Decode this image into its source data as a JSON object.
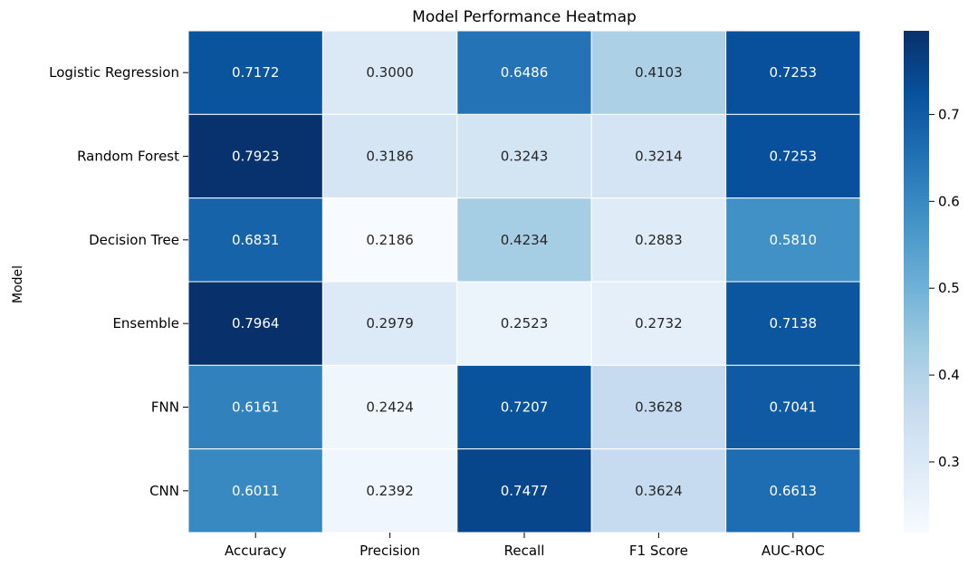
{
  "chart_data": {
    "type": "heatmap",
    "title": "Model Performance Heatmap",
    "xlabel": "",
    "ylabel": "Model",
    "columns": [
      "Accuracy",
      "Precision",
      "Recall",
      "F1 Score",
      "AUC-ROC"
    ],
    "rows": [
      "Logistic Regression",
      "Random Forest",
      "Decision Tree",
      "Ensemble",
      "FNN",
      "CNN"
    ],
    "values": [
      [
        0.7172,
        0.3,
        0.6486,
        0.4103,
        0.7253
      ],
      [
        0.7923,
        0.3186,
        0.3243,
        0.3214,
        0.7253
      ],
      [
        0.6831,
        0.2186,
        0.4234,
        0.2883,
        0.581
      ],
      [
        0.7964,
        0.2979,
        0.2523,
        0.2732,
        0.7138
      ],
      [
        0.6161,
        0.2424,
        0.7207,
        0.3628,
        0.7041
      ],
      [
        0.6011,
        0.2392,
        0.7477,
        0.3624,
        0.6613
      ]
    ],
    "value_format": "0.0000",
    "colormap": "Blues",
    "colorbar": {
      "range": [
        0.2186,
        0.7964
      ],
      "ticks": [
        0.3,
        0.4,
        0.5,
        0.6,
        0.7
      ],
      "tick_labels": [
        "0.3",
        "0.4",
        "0.5",
        "0.6",
        "0.7"
      ]
    },
    "cell_border_color": "#ffffff"
  }
}
